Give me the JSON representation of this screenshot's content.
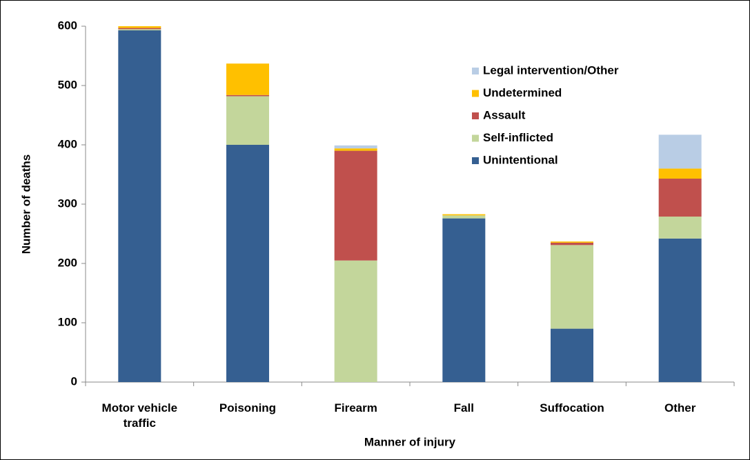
{
  "chart_data": {
    "type": "bar",
    "stacked": true,
    "x_label": "Manner of injury",
    "y_label": "Number of deaths",
    "categories": [
      "Motor vehicle traffic",
      "Poisoning",
      "Firearm",
      "Fall",
      "Suffocation",
      "Other"
    ],
    "series": [
      {
        "name": "Unintentional",
        "color": "#355f91",
        "values": [
          593,
          400,
          0,
          276,
          90,
          242
        ]
      },
      {
        "name": "Self-inflicted",
        "color": "#c3d69b",
        "values": [
          2,
          82,
          205,
          5,
          141,
          37
        ]
      },
      {
        "name": "Assault",
        "color": "#c0504d",
        "values": [
          2,
          2,
          185,
          0,
          4,
          64
        ]
      },
      {
        "name": "Undetermined",
        "color": "#ffc000",
        "values": [
          3,
          53,
          4,
          2,
          2,
          17
        ]
      },
      {
        "name": "Legal intervention/Other",
        "color": "#b9cde5",
        "values": [
          0,
          0,
          5,
          0,
          0,
          57
        ]
      }
    ],
    "ylim": [
      0,
      600
    ],
    "yticks": [
      0,
      100,
      200,
      300,
      400,
      500,
      600
    ],
    "legend": "upper right"
  }
}
